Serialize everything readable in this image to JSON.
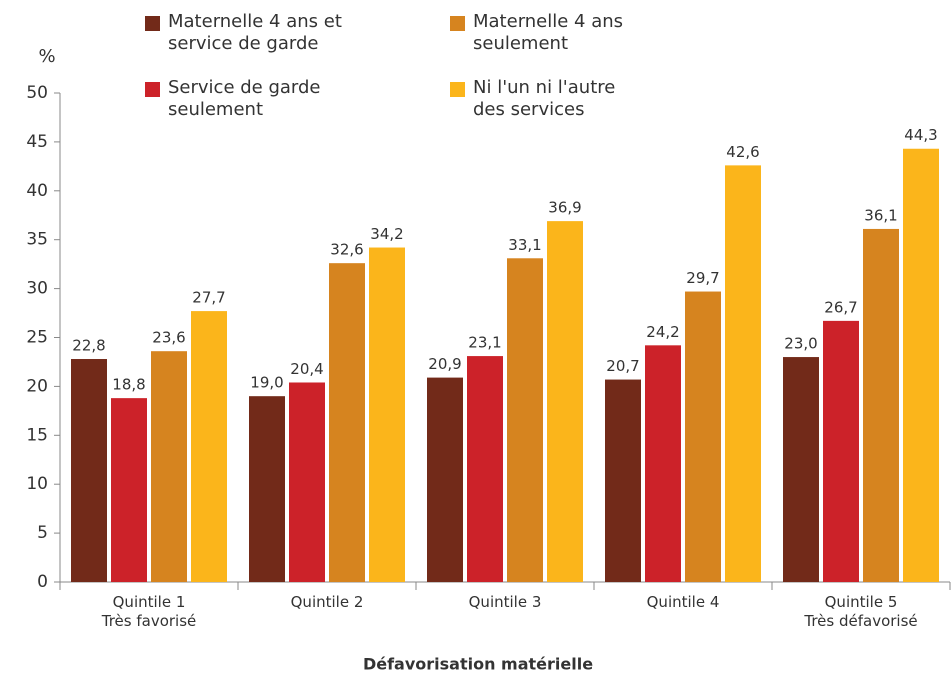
{
  "chart_data": {
    "type": "bar",
    "y_label": "%",
    "x_label": "Défavorisation matérielle",
    "categories": [
      "Quintile 1\nTrès favorisé",
      "Quintile 2",
      "Quintile 3",
      "Quintile 4",
      "Quintile 5\nTrès défavorisé"
    ],
    "series": [
      {
        "name": "Maternelle 4 ans et\nservice de garde",
        "color": "#722a19",
        "values": [
          22.8,
          19.0,
          20.9,
          20.7,
          23.0
        ],
        "value_labels": [
          "22,8",
          "19,0",
          "20,9",
          "20,7",
          "23,0"
        ]
      },
      {
        "name": "Service de garde\nseulement",
        "color": "#cc2229",
        "values": [
          18.8,
          20.4,
          23.1,
          24.2,
          26.7
        ],
        "value_labels": [
          "18,8",
          "20,4",
          "23,1",
          "24,2",
          "26,7"
        ]
      },
      {
        "name": "Maternelle 4 ans\nseulement",
        "color": "#d6841f",
        "values": [
          23.6,
          32.6,
          33.1,
          29.7,
          36.1
        ],
        "value_labels": [
          "23,6",
          "32,6",
          "33,1",
          "29,7",
          "36,1"
        ]
      },
      {
        "name": "Ni l'un ni l'autre\ndes services",
        "color": "#fbb51b",
        "values": [
          27.7,
          34.2,
          36.9,
          42.6,
          44.3
        ],
        "value_labels": [
          "27,7",
          "34,2",
          "36,9",
          "42,6",
          "44,3"
        ]
      }
    ],
    "ylim": [
      0,
      50
    ],
    "yticks": [
      0,
      5,
      10,
      15,
      20,
      25,
      30,
      35,
      40,
      45,
      50
    ],
    "grid": false
  }
}
